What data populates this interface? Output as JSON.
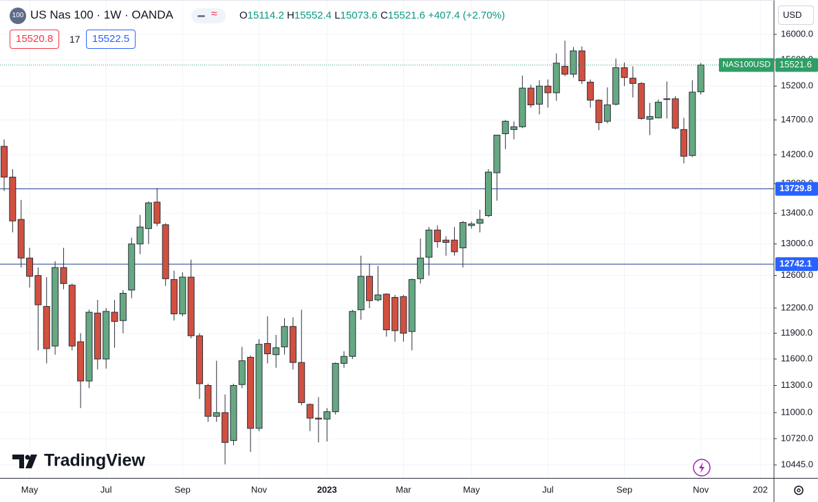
{
  "chart_data": {
    "type": "candlestick",
    "title": "US Nas 100 · 1W · OANDA",
    "badge": "100",
    "ohlc": [
      {
        "label": "O",
        "value": 15114.2
      },
      {
        "label": "H",
        "value": 15552.4
      },
      {
        "label": "L",
        "value": 15073.6
      },
      {
        "label": "C",
        "value": 15521.6
      }
    ],
    "change": "+407.4 (+2.70%)",
    "sell_price": 15520.8,
    "spread": 17,
    "buy_price": 15522.5,
    "currency": "USD",
    "logo": "TradingView",
    "last_price": {
      "name": "NAS100USD",
      "value": 15521.6,
      "color": "#2f9d66"
    },
    "hlines": [
      {
        "value": 13729.8,
        "color": "#2962ff"
      },
      {
        "value": 12742.1,
        "color": "#2962ff"
      }
    ],
    "categories": [
      null,
      null,
      null,
      "May",
      null,
      null,
      null,
      null,
      null,
      null,
      null,
      null,
      "Jul",
      null,
      null,
      null,
      null,
      null,
      null,
      null,
      null,
      "Sep",
      null,
      null,
      null,
      null,
      null,
      null,
      null,
      null,
      "Nov",
      null,
      null,
      null,
      null,
      null,
      null,
      null,
      "2023",
      null,
      null,
      null,
      null,
      null,
      null,
      null,
      null,
      "Mar",
      null,
      null,
      null,
      null,
      null,
      null,
      null,
      "May",
      null,
      null,
      null,
      null,
      null,
      null,
      null,
      null,
      "Jul",
      null,
      null,
      null,
      null,
      null,
      null,
      null,
      null,
      "Sep",
      null,
      null,
      null,
      null,
      null,
      null,
      null,
      null,
      "Nov",
      null,
      null,
      null,
      null,
      null,
      null,
      "202"
    ],
    "open": [
      14320,
      13890,
      13320,
      12820,
      12600,
      12220,
      11750,
      12700,
      12480,
      11800,
      11350,
      12140,
      11600,
      12150,
      12050,
      12420,
      13000,
      13200,
      13550,
      13250,
      12550,
      12130,
      12580,
      11870,
      11300,
      10960,
      11000,
      10700,
      11310,
      11620,
      10830,
      11780,
      11650,
      11740,
      11980,
      11560,
      11090,
      10940,
      10930,
      11010,
      11550,
      11630,
      12180,
      12590,
      12300,
      12370,
      12330,
      12340,
      11920,
      12560,
      12830,
      13180,
      13050,
      13050,
      12950,
      13240,
      13270,
      13370,
      13950,
      14500,
      14560,
      14600,
      15170,
      14930,
      15200,
      15100,
      15500,
      15380,
      15740,
      15260,
      14990,
      14680,
      14930,
      15480,
      15320,
      15240,
      14710,
      14730,
      15010,
      15010,
      14560,
      14190,
      15114.2,
      null,
      null,
      null,
      null,
      null,
      null,
      null
    ],
    "high": [
      14420,
      14000,
      13580,
      12950,
      12700,
      12580,
      12780,
      12950,
      12500,
      11900,
      12180,
      12300,
      12200,
      12300,
      12420,
      13080,
      13380,
      13560,
      13740,
      13270,
      12660,
      12640,
      12800,
      11900,
      11320,
      11580,
      11200,
      11320,
      11740,
      11640,
      11830,
      12100,
      11880,
      12080,
      12090,
      12180,
      11100,
      11170,
      11050,
      11560,
      11690,
      12180,
      12850,
      12750,
      12720,
      12380,
      12360,
      12360,
      12560,
      13070,
      13220,
      13240,
      13100,
      13220,
      13300,
      13290,
      13450,
      14000,
      14480,
      14700,
      14680,
      15360,
      15220,
      15290,
      15300,
      15700,
      15900,
      15800,
      15810,
      15300,
      15000,
      15180,
      15620,
      15560,
      15500,
      15260,
      14950,
      15000,
      15270,
      15050,
      14730,
      15290,
      15552.4,
      null,
      null,
      null,
      null,
      null,
      null,
      null
    ],
    "low": [
      13700,
      13150,
      12700,
      12450,
      11700,
      11550,
      11650,
      12430,
      11700,
      11050,
      11270,
      11480,
      11490,
      11730,
      11900,
      12320,
      12870,
      13000,
      13230,
      12470,
      12050,
      12100,
      11840,
      11150,
      10900,
      10900,
      10450,
      10650,
      11270,
      10580,
      10800,
      11550,
      11500,
      11650,
      11480,
      11080,
      10800,
      10680,
      10690,
      10980,
      11500,
      11600,
      12060,
      12200,
      12280,
      11860,
      11800,
      11800,
      11700,
      12500,
      12600,
      12950,
      12850,
      12850,
      12700,
      13200,
      13150,
      13350,
      13570,
      14280,
      14420,
      14580,
      14880,
      14780,
      14880,
      14980,
      15350,
      15330,
      15230,
      14880,
      14550,
      14650,
      14910,
      15200,
      15030,
      14700,
      14480,
      14720,
      14720,
      14560,
      14080,
      14170,
      15073.6,
      null,
      null,
      null,
      null,
      null,
      null,
      null
    ],
    "close": [
      13890,
      13300,
      12820,
      12590,
      12240,
      11720,
      12700,
      12500,
      11750,
      11350,
      12150,
      11600,
      12160,
      12040,
      12380,
      13000,
      13220,
      13540,
      13270,
      12560,
      12130,
      12580,
      11870,
      11320,
      10960,
      11000,
      10680,
      11300,
      11580,
      10830,
      11770,
      11660,
      11730,
      11980,
      11560,
      11110,
      10940,
      10930,
      11010,
      11550,
      11630,
      12160,
      12590,
      12290,
      12360,
      11940,
      11930,
      11900,
      12550,
      12820,
      13180,
      13030,
      13020,
      12900,
      13280,
      13260,
      13320,
      13960,
      14480,
      14680,
      14600,
      15170,
      14920,
      15200,
      15100,
      15550,
      15380,
      15740,
      15280,
      14990,
      14660,
      14920,
      15480,
      15330,
      15240,
      14720,
      14750,
      14960,
      15000,
      14580,
      14180,
      15110,
      15521.6,
      null,
      null,
      null,
      null,
      null,
      null,
      null
    ],
    "up_color": "#66a882",
    "down_color": "#d2503f",
    "wick_color": "#2a2e39",
    "log_scale": true,
    "grid": true,
    "ylim": [
      10311,
      16497
    ],
    "yticks": [
      {
        "value": 10445,
        "label": "10445.0"
      },
      {
        "value": 10720,
        "label": "10720.0"
      },
      {
        "value": 11000,
        "label": "11000.0"
      },
      {
        "value": 11300,
        "label": "11300.0"
      },
      {
        "value": 11600,
        "label": "11600.0"
      },
      {
        "value": 11900,
        "label": "11900.0"
      },
      {
        "value": 12200,
        "label": "12200.0"
      },
      {
        "value": 12600,
        "label": "12600.0"
      },
      {
        "value": 13000,
        "label": "13000.0"
      },
      {
        "value": 13400,
        "label": "13400.0"
      },
      {
        "value": 13800,
        "label": "13800.0"
      },
      {
        "value": 14200,
        "label": "14200.0"
      },
      {
        "value": 14700,
        "label": "14700.0"
      },
      {
        "value": 15200,
        "label": "15200.0"
      },
      {
        "value": 15600,
        "label": "15600.0"
      },
      {
        "value": 16000,
        "label": "16000.0"
      }
    ]
  }
}
